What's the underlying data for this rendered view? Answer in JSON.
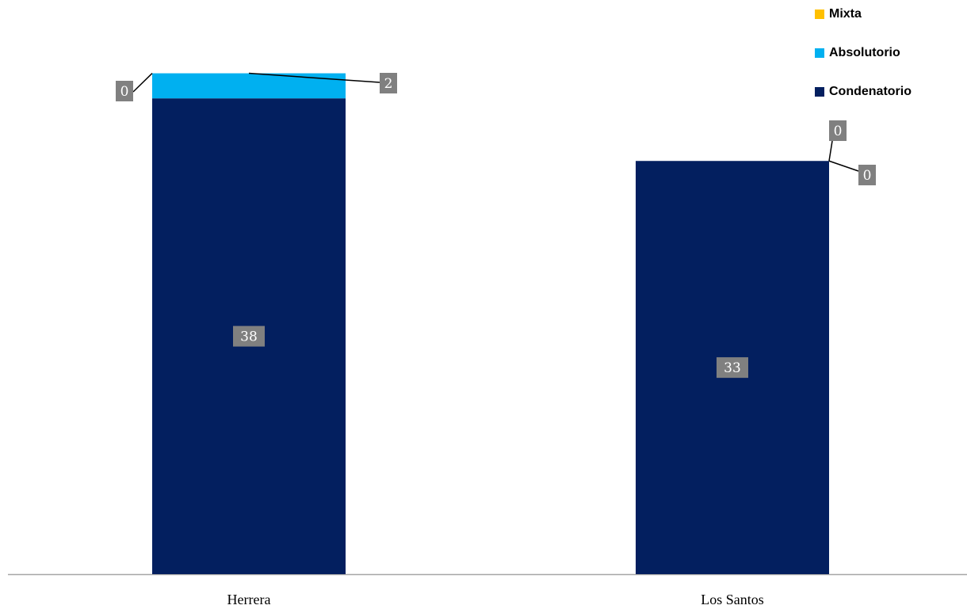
{
  "chart_data": {
    "type": "bar",
    "stacked": true,
    "categories": [
      "Herrera",
      "Los Santos"
    ],
    "series": [
      {
        "name": "Condenatorio",
        "color": "#031f5f",
        "values": [
          38,
          33
        ]
      },
      {
        "name": "Absolutorio",
        "color": "#00b0f0",
        "values": [
          2,
          0
        ]
      },
      {
        "name": "Mixta",
        "color": "#ffc000",
        "values": [
          0,
          0
        ]
      }
    ],
    "ylim": [
      0,
      45
    ],
    "grid": false,
    "legend_position": "top-right",
    "legend_order": [
      "Mixta",
      "Absolutorio",
      "Condenatorio"
    ],
    "label_color": "#808080",
    "axis_color": "#a6a6a6"
  }
}
